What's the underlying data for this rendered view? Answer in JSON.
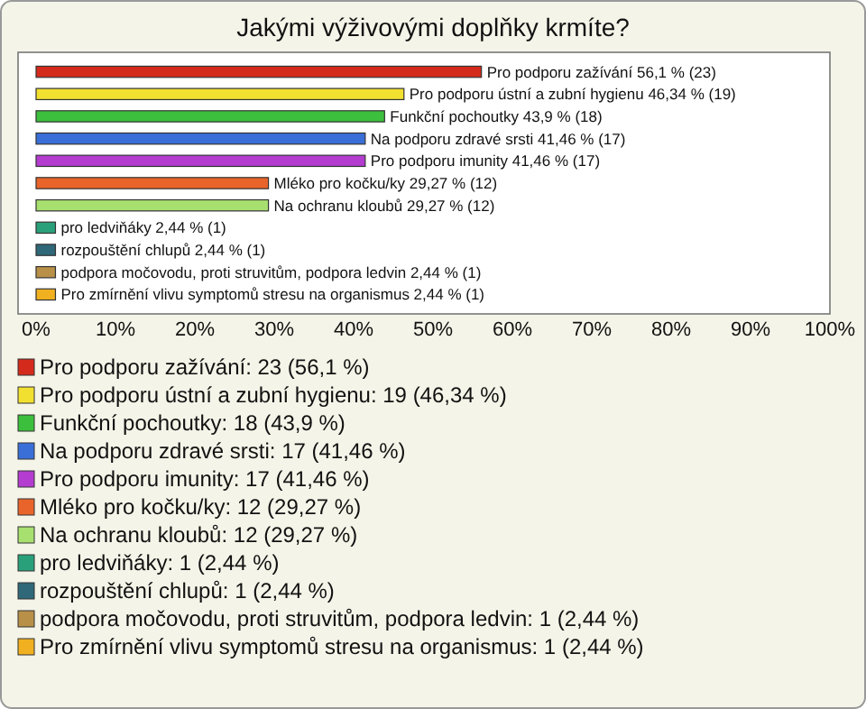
{
  "chart_data": {
    "type": "bar",
    "title": "Jakými výživovými doplňky krmíte?",
    "orientation": "horizontal",
    "categories": [
      null,
      null,
      null,
      null,
      null,
      null,
      null,
      null,
      null,
      null,
      null
    ],
    "xlim": [
      0,
      100
    ],
    "xticks": [
      {
        "value": 0,
        "label": "0%"
      },
      {
        "value": 10,
        "label": "10%"
      },
      {
        "value": 20,
        "label": "20%"
      },
      {
        "value": 30,
        "label": "30%"
      },
      {
        "value": 40,
        "label": "40%"
      },
      {
        "value": 50,
        "label": "50%"
      },
      {
        "value": 60,
        "label": "60%"
      },
      {
        "value": 70,
        "label": "70%"
      },
      {
        "value": 80,
        "label": "80%"
      },
      {
        "value": 90,
        "label": "90%"
      },
      {
        "value": 100,
        "label": "100%"
      }
    ],
    "values": [
      56.1,
      46.34,
      43.9,
      41.46,
      41.46,
      29.27,
      29.27,
      2.44,
      2.44,
      2.44,
      2.44
    ],
    "colors": [
      "#d42a1c",
      "#f2e030",
      "#3cbf3c",
      "#3a6fd8",
      "#b43cd0",
      "#e8642a",
      "#a8e070",
      "#2aa07a",
      "#2f6878",
      "#b89048",
      "#f0b020"
    ],
    "value_labels": [
      "Pro podporu zažívání 56,1 % (23)",
      "Pro podporu ústní a zubní hygienu 46,34 % (19)",
      "Funkční pochoutky 43,9 % (18)",
      "Na podporu zdravé srsti 41,46 % (17)",
      "Pro podporu imunity 41,46 % (17)",
      "Mléko pro kočku/ky 29,27 % (12)",
      "Na ochranu kloubů 29,27 % (12)",
      "pro ledviňáky 2,44 % (1)",
      "rozpouštění chlupů 2,44 % (1)",
      "podpora močovodu, proti struvitům, podpora ledvin 2,44 % (1)",
      "Pro zmírnění vlivu symptomů stresu na organismus 2,44 % (1)"
    ],
    "annotations": [
      "Pro podporu zažívání: 23 (56,1 %)",
      "Pro podporu ústní a zubní hygienu: 19 (46,34 %)",
      "Funkční pochoutky: 18 (43,9 %)",
      "Na podporu zdravé srsti: 17 (41,46 %)",
      "Pro podporu imunity: 17 (41,46 %)",
      "Mléko pro kočku/ky: 12 (29,27 %)",
      "Na ochranu kloubů: 12 (29,27 %)",
      "pro ledviňáky: 1 (2,44 %)",
      "rozpouštění chlupů: 1 (2,44 %)",
      "podpora močovodu, proti struvitům, podpora ledvin: 1 (2,44 %)",
      "Pro zmírnění vlivu symptomů stresu na organismus: 1 (2,44 %)"
    ]
  }
}
